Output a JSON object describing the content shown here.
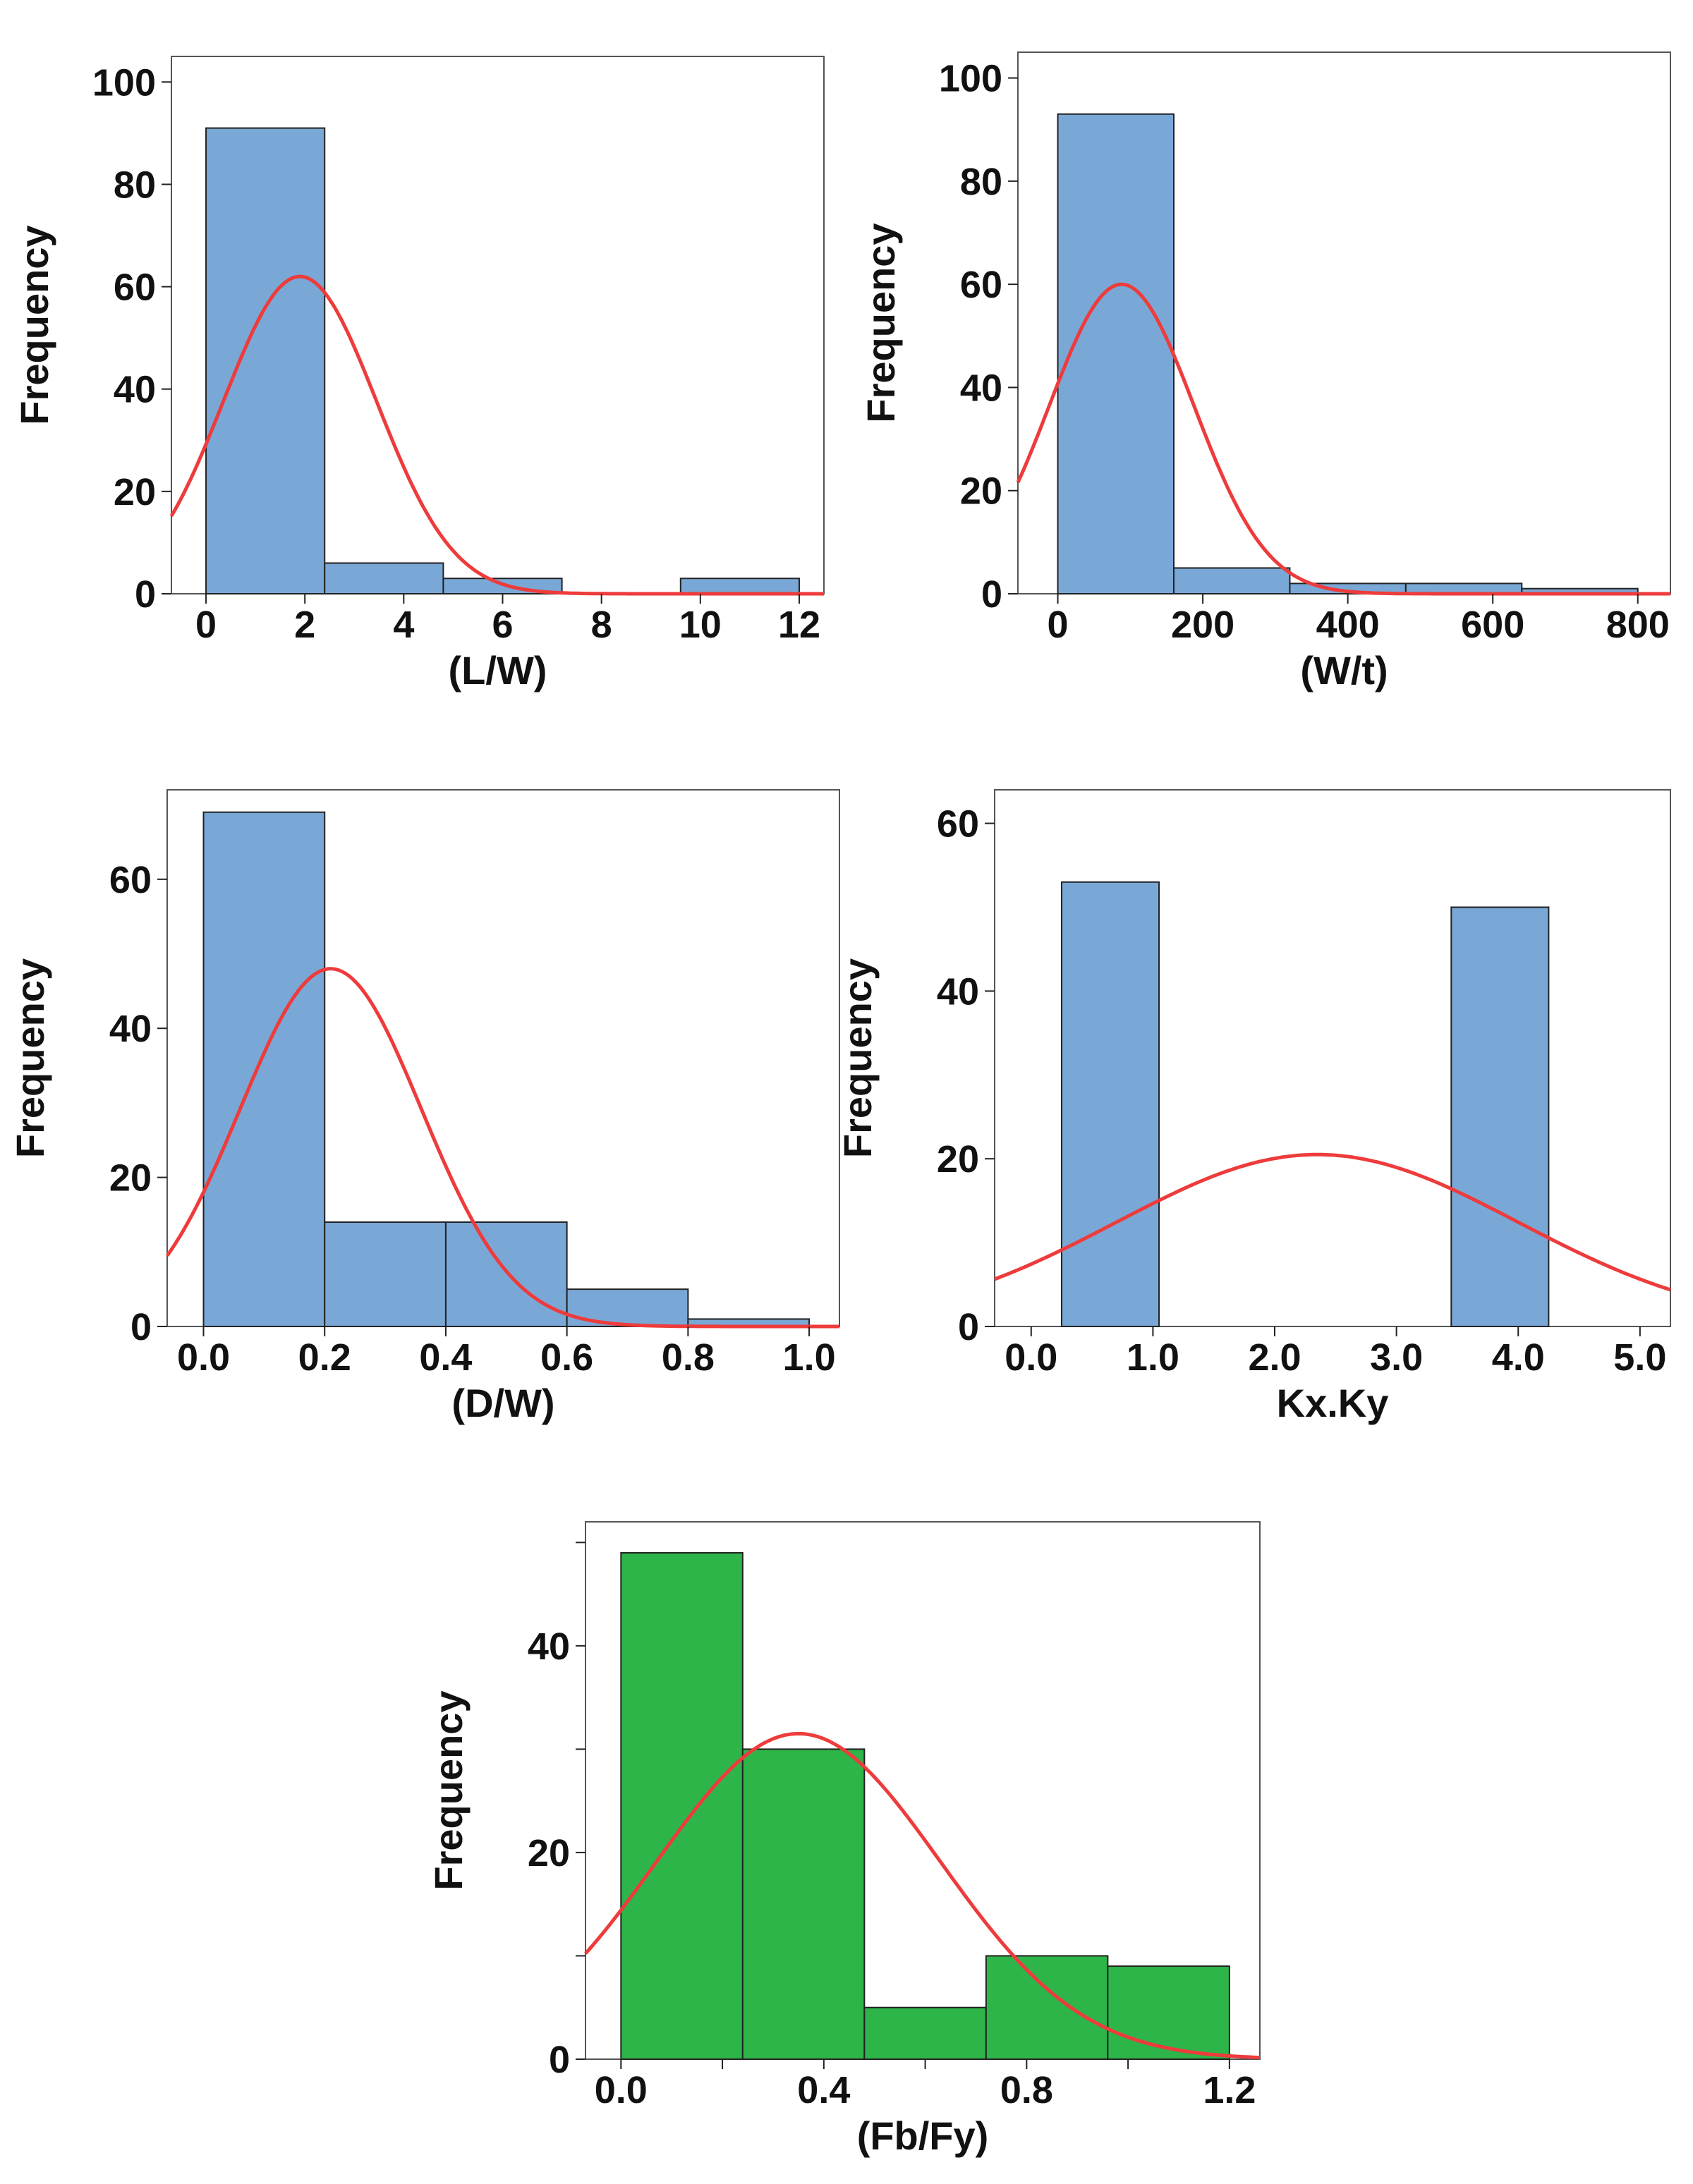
{
  "figure": {
    "ylabel": "Frequency",
    "colors": {
      "bar_blue": "#7aa8d6",
      "bar_green": "#2db54a",
      "curve": "#ee3b3b",
      "axis": "#222222"
    }
  },
  "chart_data": [
    {
      "type": "bar",
      "title": "",
      "xlabel": "(L/W)",
      "ylabel": "Frequency",
      "xlim": [
        -0.7,
        12.5
      ],
      "ylim": [
        0,
        105
      ],
      "xticks": [
        0,
        2,
        4,
        6,
        8,
        10,
        12
      ],
      "xtick_labels": [
        "0",
        "2",
        "4",
        "6",
        "8",
        "10",
        "12"
      ],
      "yticks": [
        0,
        20,
        40,
        60,
        80,
        100
      ],
      "ytick_labels": [
        "0",
        "20",
        "40",
        "60",
        "80",
        "100"
      ],
      "bins": [
        [
          0,
          2.4
        ],
        [
          2.4,
          4.8
        ],
        [
          4.8,
          7.2
        ],
        [
          9.6,
          12
        ]
      ],
      "values": [
        91,
        6,
        3,
        3
      ],
      "bar_color": "bar_blue",
      "normal_curve": {
        "mean": 1.9,
        "sd": 1.55,
        "peak": 62
      }
    },
    {
      "type": "bar",
      "title": "",
      "xlabel": "(W/t)",
      "ylabel": "Frequency",
      "xlim": [
        -55,
        845
      ],
      "ylim": [
        0,
        105
      ],
      "xticks": [
        0,
        200,
        400,
        600,
        800
      ],
      "xtick_labels": [
        "0",
        "200",
        "400",
        "600",
        "800"
      ],
      "yticks": [
        0,
        20,
        40,
        60,
        80,
        100
      ],
      "ytick_labels": [
        "0",
        "20",
        "40",
        "60",
        "80",
        "100"
      ],
      "bins": [
        [
          0,
          160
        ],
        [
          160,
          320
        ],
        [
          320,
          480
        ],
        [
          480,
          640
        ],
        [
          640,
          800
        ]
      ],
      "values": [
        93,
        5,
        2,
        2,
        1
      ],
      "bar_color": "bar_blue",
      "normal_curve": {
        "mean": 88,
        "sd": 100,
        "peak": 60
      }
    },
    {
      "type": "bar",
      "title": "",
      "xlabel": "(D/W)",
      "ylabel": "Frequency",
      "xlim": [
        -0.06,
        1.05
      ],
      "ylim": [
        0,
        72
      ],
      "xticks": [
        0.0,
        0.2,
        0.4,
        0.6,
        0.8,
        1.0
      ],
      "xtick_labels": [
        "0.0",
        "0.2",
        "0.4",
        "0.6",
        "0.8",
        "1.0"
      ],
      "yticks": [
        0,
        20,
        40,
        60
      ],
      "ytick_labels": [
        "0",
        "20",
        "40",
        "60"
      ],
      "bins": [
        [
          0,
          0.2
        ],
        [
          0.2,
          0.4
        ],
        [
          0.4,
          0.6
        ],
        [
          0.6,
          0.8
        ],
        [
          0.8,
          1.0
        ]
      ],
      "values": [
        69,
        14,
        14,
        5,
        1
      ],
      "bar_color": "bar_blue",
      "normal_curve": {
        "mean": 0.21,
        "sd": 0.15,
        "peak": 48
      }
    },
    {
      "type": "bar",
      "title": "",
      "xlabel": "Kx.Ky",
      "ylabel": "Frequency",
      "xlim": [
        -0.3,
        5.25
      ],
      "ylim": [
        0,
        64
      ],
      "xticks": [
        0,
        1,
        2,
        3,
        4,
        5
      ],
      "xtick_labels": [
        "0.0",
        "1.0",
        "2.0",
        "3.0",
        "4.0",
        "5.0"
      ],
      "yticks": [
        0,
        20,
        40,
        60
      ],
      "ytick_labels": [
        "0",
        "20",
        "40",
        "60"
      ],
      "bins": [
        [
          0.25,
          1.05
        ],
        [
          3.45,
          4.25
        ]
      ],
      "values": [
        53,
        50
      ],
      "bar_color": "bar_blue",
      "normal_curve": {
        "mean": 2.35,
        "sd": 1.65,
        "peak": 20.5
      }
    },
    {
      "type": "bar",
      "title": "",
      "xlabel": "(Fb/Fy)",
      "ylabel": "Frequency",
      "xlim": [
        -0.07,
        1.26
      ],
      "ylim": [
        0,
        52
      ],
      "xticks": [
        0.0,
        0.4,
        0.8,
        1.2
      ],
      "xtick_labels": [
        "0.0",
        "0.4",
        "0.8",
        "1.2"
      ],
      "minor_xticks": [
        0.2,
        0.6,
        1.0
      ],
      "yticks": [
        0,
        20,
        40
      ],
      "ytick_labels": [
        "0",
        "20",
        "40"
      ],
      "minor_yticks": [
        10,
        30,
        50
      ],
      "bins": [
        [
          0,
          0.24
        ],
        [
          0.24,
          0.48
        ],
        [
          0.48,
          0.72
        ],
        [
          0.72,
          0.96
        ],
        [
          0.96,
          1.2
        ]
      ],
      "values": [
        49,
        30,
        5,
        10,
        9
      ],
      "bar_color": "bar_green",
      "normal_curve": {
        "mean": 0.35,
        "sd": 0.28,
        "peak": 31.5
      }
    }
  ]
}
